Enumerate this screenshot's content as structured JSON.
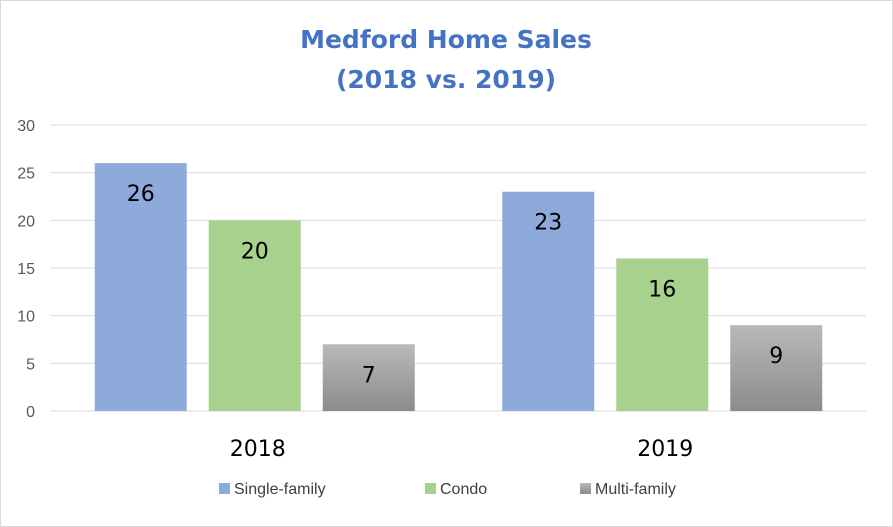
{
  "chart_data": {
    "type": "bar",
    "title": "Medford Home Sales",
    "subtitle": "(2018 vs. 2019)",
    "categories": [
      "2018",
      "2019"
    ],
    "series": [
      {
        "name": "Single-family",
        "values": [
          26,
          23
        ],
        "color": "#8eaadb"
      },
      {
        "name": "Condo",
        "values": [
          20,
          16
        ],
        "color": "#a9d18e"
      },
      {
        "name": "Multi-family",
        "values": [
          7,
          9
        ],
        "color": "#a5a5a5"
      }
    ],
    "ylim": [
      0,
      30
    ],
    "yticks": [
      0,
      5,
      10,
      15,
      20,
      25,
      30
    ],
    "grid": true,
    "legend_position": "bottom",
    "title_color": "#4472c4"
  }
}
